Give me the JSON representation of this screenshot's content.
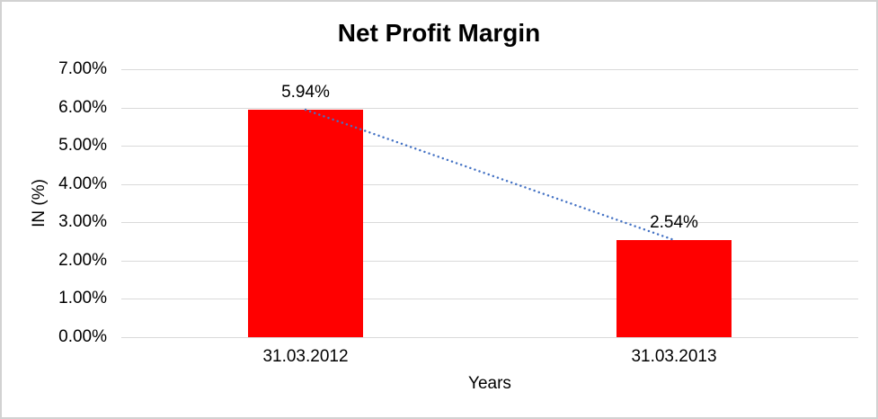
{
  "chart_data": {
    "type": "bar",
    "title": "Net Profit Margin",
    "categories": [
      "31.03.2012",
      "31.03.2013"
    ],
    "values": [
      5.94,
      2.54
    ],
    "data_labels": [
      "5.94%",
      "2.54%"
    ],
    "xlabel": "Years",
    "ylabel": "IN (%)",
    "ylim": [
      0,
      7
    ],
    "yticks": [
      0,
      1,
      2,
      3,
      4,
      5,
      6,
      7
    ],
    "ytick_labels": [
      "0.00%",
      "1.00%",
      "2.00%",
      "3.00%",
      "4.00%",
      "5.00%",
      "6.00%",
      "7.00%"
    ],
    "grid": true,
    "legend": false,
    "bar_color": "#FF0000",
    "trendline": {
      "type": "linear",
      "style": "dotted",
      "color": "#4472C4"
    },
    "colors": {
      "gridline": "#D9D9D9",
      "text": "#000000",
      "frame_border": "#D2D2D2",
      "background": "#FFFFFF"
    }
  }
}
